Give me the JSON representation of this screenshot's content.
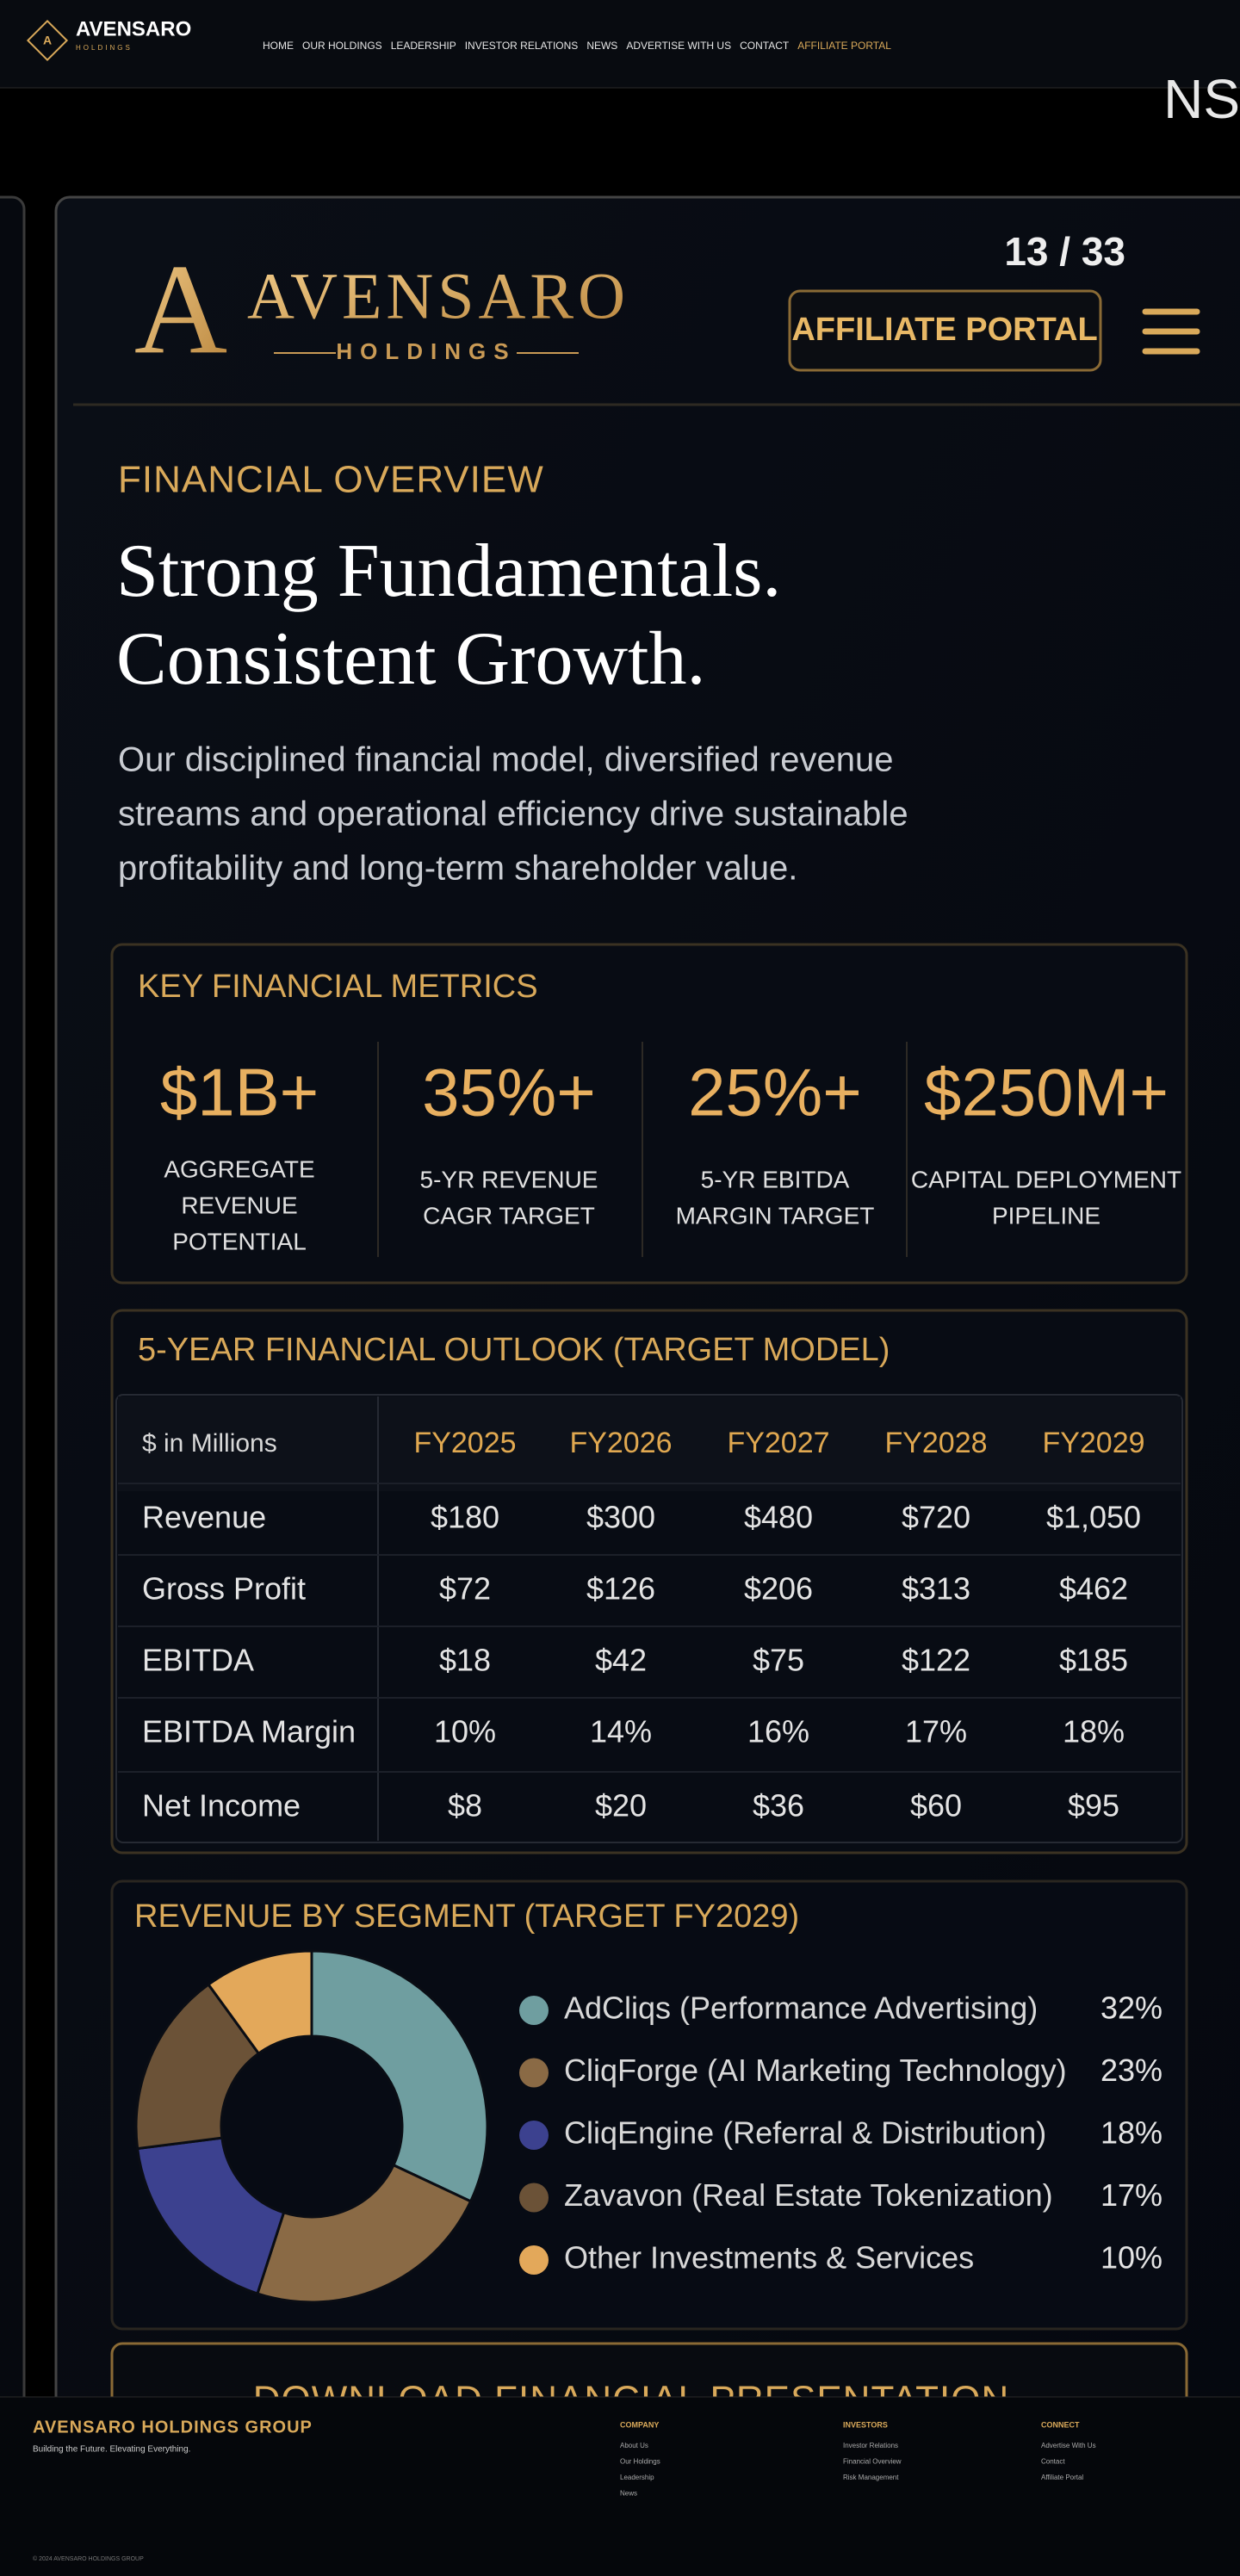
{
  "header": {
    "logo_letter": "A",
    "brand": "AVENSARO",
    "brand_sub": "HOLDINGS",
    "nav": [
      "HOME",
      "OUR HOLDINGS",
      "LEADERSHIP",
      "INVESTOR RELATIONS",
      "NEWS",
      "ADVERTISE WITH US",
      "CONTACT",
      "AFFILIATE PORTAL"
    ]
  },
  "banner_fragment": "NS",
  "slide": {
    "counter": "13 / 33",
    "logo_name": "AVENSARO",
    "logo_sub": "HOLDINGS",
    "portal_button": "AFFILIATE PORTAL",
    "eyebrow": "FINANCIAL OVERVIEW",
    "headline": [
      "Strong Fundamentals.",
      "Consistent Growth."
    ],
    "intro": [
      "Our disciplined financial model, diversified revenue",
      "streams and operational efficiency drive sustainable",
      "profitability and long-term shareholder value."
    ],
    "metrics": {
      "title": "KEY FINANCIAL METRICS",
      "items": [
        {
          "value": "$1B+",
          "label": [
            "AGGREGATE",
            "REVENUE",
            "POTENTIAL"
          ]
        },
        {
          "value": "35%+",
          "label": [
            "5-YR REVENUE",
            "CAGR TARGET"
          ]
        },
        {
          "value": "25%+",
          "label": [
            "5-YR EBITDA",
            "MARGIN TARGET"
          ]
        },
        {
          "value": "$250M+",
          "label": [
            "CAPITAL DEPLOYMENT",
            "PIPELINE"
          ]
        }
      ]
    },
    "outlook": {
      "title": "5-YEAR FINANCIAL OUTLOOK (TARGET MODEL)",
      "header": [
        "$ in Millions",
        "FY2025",
        "FY2026",
        "FY2027",
        "FY2028",
        "FY2029"
      ],
      "rows": [
        [
          "Revenue",
          "$180",
          "$300",
          "$480",
          "$720",
          "$1,050"
        ],
        [
          "Gross Profit",
          "$72",
          "$126",
          "$206",
          "$313",
          "$462"
        ],
        [
          "EBITDA",
          "$18",
          "$42",
          "$75",
          "$122",
          "$185"
        ],
        [
          "EBITDA Margin",
          "10%",
          "14%",
          "16%",
          "17%",
          "18%"
        ],
        [
          "Net Income",
          "$8",
          "$20",
          "$36",
          "$60",
          "$95"
        ]
      ]
    },
    "download_button": "DOWNLOAD FINANCIAL PRESENTATION"
  },
  "chart_data": {
    "type": "pie",
    "title": "REVENUE BY SEGMENT (TARGET FY2029)",
    "categories": [
      "AdCliqs (Performance Advertising)",
      "CliqForge (AI Marketing Technology)",
      "CliqEngine (Referral & Distribution)",
      "Zavavon (Real Estate Tokenization)",
      "Other Investments & Services"
    ],
    "values": [
      32,
      23,
      18,
      17,
      10
    ],
    "value_labels": [
      "32%",
      "23%",
      "18%",
      "17%",
      "10%"
    ],
    "colors": [
      "#6f9ea0",
      "#8a6a45",
      "#3c418f",
      "#6b5237",
      "#e3a85a"
    ]
  },
  "footer": {
    "brand": "AVENSARO HOLDINGS GROUP",
    "tagline": "Building the Future. Elevating Everything.",
    "columns": [
      {
        "title": "COMPANY",
        "links": [
          "About Us",
          "Our Holdings",
          "Leadership",
          "News"
        ]
      },
      {
        "title": "INVESTORS",
        "links": [
          "Investor Relations",
          "Financial Overview",
          "Risk Management"
        ]
      },
      {
        "title": "CONNECT",
        "links": [
          "Advertise With Us",
          "Contact",
          "Affiliate Portal"
        ]
      }
    ],
    "copyright": "© 2024 AVENSARO HOLDINGS GROUP"
  }
}
